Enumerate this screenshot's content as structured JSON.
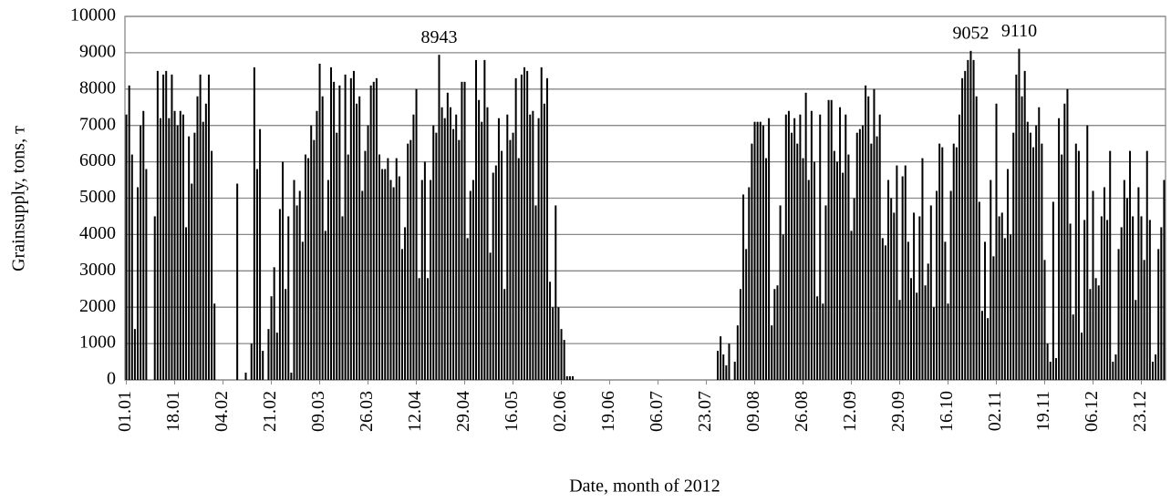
{
  "chart_data": {
    "type": "bar",
    "x_label": "Date, month of 2012",
    "y_label": "Grainsupply, tons, т",
    "color": "#000000",
    "grid": true,
    "ylim": [
      0,
      10000
    ],
    "yticks": [
      0,
      1000,
      2000,
      3000,
      4000,
      5000,
      6000,
      7000,
      8000,
      9000,
      10000
    ],
    "categories": [
      "01.01",
      null,
      null,
      null,
      null,
      null,
      null,
      null,
      null,
      null,
      null,
      null,
      null,
      null,
      null,
      null,
      null,
      "18.01",
      null,
      null,
      null,
      null,
      null,
      null,
      null,
      null,
      null,
      null,
      null,
      null,
      null,
      null,
      null,
      null,
      "04.02",
      null,
      null,
      null,
      null,
      null,
      null,
      null,
      null,
      null,
      null,
      null,
      null,
      null,
      null,
      null,
      null,
      "21.02",
      null,
      null,
      null,
      null,
      null,
      null,
      null,
      null,
      null,
      null,
      null,
      null,
      null,
      null,
      null,
      null,
      "09.03",
      null,
      null,
      null,
      null,
      null,
      null,
      null,
      null,
      null,
      null,
      null,
      null,
      null,
      null,
      null,
      null,
      "26.03",
      null,
      null,
      null,
      null,
      null,
      null,
      null,
      null,
      null,
      null,
      null,
      null,
      null,
      null,
      null,
      null,
      "12.04",
      null,
      null,
      null,
      null,
      null,
      null,
      null,
      null,
      null,
      null,
      null,
      null,
      null,
      null,
      null,
      null,
      "29.04",
      null,
      null,
      null,
      null,
      null,
      null,
      null,
      null,
      null,
      null,
      null,
      null,
      null,
      null,
      null,
      null,
      "16.05",
      null,
      null,
      null,
      null,
      null,
      null,
      null,
      null,
      null,
      null,
      null,
      null,
      null,
      null,
      null,
      null,
      "02.06",
      null,
      null,
      null,
      null,
      null,
      null,
      null,
      null,
      null,
      null,
      null,
      null,
      null,
      null,
      null,
      null,
      "19.06",
      null,
      null,
      null,
      null,
      null,
      null,
      null,
      null,
      null,
      null,
      null,
      null,
      null,
      null,
      null,
      null,
      "06.07",
      null,
      null,
      null,
      null,
      null,
      null,
      null,
      null,
      null,
      null,
      null,
      null,
      null,
      null,
      null,
      null,
      "23.07",
      null,
      null,
      null,
      null,
      null,
      null,
      null,
      null,
      null,
      null,
      null,
      null,
      null,
      null,
      null,
      null,
      "09.08",
      null,
      null,
      null,
      null,
      null,
      null,
      null,
      null,
      null,
      null,
      null,
      null,
      null,
      null,
      null,
      null,
      "26.08",
      null,
      null,
      null,
      null,
      null,
      null,
      null,
      null,
      null,
      null,
      null,
      null,
      null,
      null,
      null,
      null,
      "12.09",
      null,
      null,
      null,
      null,
      null,
      null,
      null,
      null,
      null,
      null,
      null,
      null,
      null,
      null,
      null,
      null,
      "29.09",
      null,
      null,
      null,
      null,
      null,
      null,
      null,
      null,
      null,
      null,
      null,
      null,
      null,
      null,
      null,
      null,
      "16.10",
      null,
      null,
      null,
      null,
      null,
      null,
      null,
      null,
      null,
      null,
      null,
      null,
      null,
      null,
      null,
      null,
      "02.11",
      null,
      null,
      null,
      null,
      null,
      null,
      null,
      null,
      null,
      null,
      null,
      null,
      null,
      null,
      null,
      null,
      "19.11",
      null,
      null,
      null,
      null,
      null,
      null,
      null,
      null,
      null,
      null,
      null,
      null,
      null,
      null,
      null,
      null,
      "06.12",
      null,
      null,
      null,
      null,
      null,
      null,
      null,
      null,
      null,
      null,
      null,
      null,
      null,
      null,
      null,
      null,
      "23.12",
      null,
      null,
      null,
      null,
      null,
      null,
      null,
      null
    ],
    "values": [
      7300,
      8100,
      6200,
      1400,
      5300,
      7000,
      7400,
      5800,
      0,
      0,
      4500,
      8500,
      7200,
      8400,
      8500,
      7200,
      8400,
      7400,
      7000,
      7400,
      7300,
      4200,
      6700,
      5400,
      6800,
      7800,
      8400,
      7100,
      7600,
      8400,
      6300,
      2100,
      0,
      0,
      0,
      0,
      0,
      0,
      0,
      5400,
      0,
      0,
      200,
      0,
      1000,
      8600,
      5800,
      6900,
      800,
      0,
      1400,
      2300,
      3100,
      1300,
      4700,
      6000,
      2500,
      4500,
      200,
      5500,
      4800,
      5200,
      3800,
      6200,
      6100,
      7000,
      6600,
      7400,
      8700,
      7800,
      4100,
      5500,
      8600,
      8200,
      6800,
      8100,
      4500,
      8400,
      6200,
      8300,
      8500,
      7600,
      7800,
      5200,
      6300,
      7000,
      8100,
      8200,
      8300,
      6200,
      5800,
      5800,
      6100,
      5500,
      5300,
      6100,
      5600,
      3600,
      4200,
      6500,
      6600,
      7300,
      8000,
      2800,
      5500,
      6000,
      2800,
      5500,
      7000,
      6800,
      8943,
      7500,
      7200,
      7900,
      7500,
      6900,
      7300,
      6600,
      8200,
      8200,
      3900,
      5200,
      5500,
      8800,
      7700,
      7100,
      8800,
      7500,
      3500,
      5700,
      5900,
      7200,
      6300,
      2500,
      7300,
      6600,
      6800,
      8300,
      6100,
      8400,
      8600,
      8500,
      7300,
      7400,
      4800,
      7200,
      8600,
      7600,
      8300,
      2700,
      2000,
      4800,
      2000,
      1400,
      1100,
      100,
      100,
      100,
      0,
      0,
      0,
      0,
      0,
      0,
      0,
      0,
      0,
      0,
      0,
      0,
      0,
      0,
      0,
      0,
      0,
      0,
      0,
      0,
      0,
      0,
      0,
      0,
      0,
      0,
      0,
      0,
      0,
      0,
      0,
      0,
      0,
      0,
      0,
      0,
      0,
      0,
      0,
      0,
      0,
      0,
      0,
      0,
      0,
      0,
      0,
      0,
      0,
      0,
      800,
      1200,
      700,
      400,
      1000,
      0,
      500,
      1500,
      2500,
      5100,
      3600,
      5300,
      6500,
      7100,
      7100,
      7100,
      7000,
      6100,
      7200,
      1500,
      2500,
      2600,
      4800,
      4000,
      7300,
      7400,
      6800,
      7200,
      6500,
      7300,
      6100,
      7900,
      5500,
      7400,
      6000,
      2300,
      7300,
      2100,
      4800,
      7700,
      7700,
      6300,
      6000,
      7500,
      5700,
      7300,
      6200,
      4100,
      5000,
      6800,
      6900,
      7000,
      8100,
      7800,
      6500,
      8000,
      6700,
      7300,
      3900,
      3700,
      5500,
      5000,
      4600,
      5900,
      2200,
      5600,
      5900,
      3800,
      2800,
      4600,
      2400,
      4500,
      6100,
      2600,
      3200,
      4800,
      2000,
      5200,
      6500,
      6400,
      3800,
      2100,
      5200,
      6500,
      6400,
      7300,
      8300,
      8500,
      8800,
      9052,
      8800,
      7800,
      4900,
      1900,
      3800,
      1700,
      5500,
      3400,
      7600,
      4500,
      4600,
      3900,
      5800,
      4000,
      6800,
      8400,
      9110,
      7800,
      8500,
      7100,
      6800,
      6400,
      7000,
      7500,
      6500,
      3300,
      1000,
      500,
      4900,
      600,
      7200,
      6200,
      7600,
      8000,
      4300,
      1800,
      6500,
      6300,
      1300,
      4400,
      7000,
      2500,
      5200,
      2800,
      2600,
      4500,
      5300,
      4400,
      6300,
      500,
      700,
      3600,
      4200,
      5500,
      5000,
      6300,
      4500,
      2200,
      5300,
      4500,
      3300,
      6300,
      4400,
      500,
      700,
      3600,
      4200,
      5500
    ],
    "value_labels": [
      null,
      null,
      null,
      null,
      null,
      null,
      null,
      null,
      null,
      null,
      null,
      null,
      null,
      null,
      null,
      null,
      null,
      null,
      null,
      null,
      null,
      null,
      null,
      null,
      null,
      null,
      null,
      null,
      null,
      null,
      null,
      null,
      null,
      null,
      null,
      null,
      null,
      null,
      null,
      null,
      null,
      null,
      null,
      null,
      null,
      null,
      null,
      null,
      null,
      null,
      null,
      null,
      null,
      null,
      null,
      null,
      null,
      null,
      null,
      null,
      null,
      null,
      null,
      null,
      null,
      null,
      null,
      null,
      null,
      null,
      null,
      null,
      null,
      null,
      null,
      null,
      null,
      null,
      null,
      null,
      null,
      null,
      null,
      null,
      null,
      null,
      null,
      null,
      null,
      null,
      null,
      null,
      null,
      null,
      null,
      null,
      null,
      null,
      null,
      null,
      null,
      null,
      null,
      null,
      null,
      null,
      null,
      null,
      null,
      null,
      "8943",
      null,
      null,
      null,
      null,
      null,
      null,
      null,
      null,
      null,
      null,
      null,
      null,
      null,
      null,
      null,
      null,
      null,
      null,
      null,
      null,
      null,
      null,
      null,
      null,
      null,
      null,
      null,
      null,
      null,
      null,
      null,
      null,
      null,
      null,
      null,
      null,
      null,
      null,
      null,
      null,
      null,
      null,
      null,
      null,
      null,
      null,
      null,
      null,
      null,
      null,
      null,
      null,
      null,
      null,
      null,
      null,
      null,
      null,
      null,
      null,
      null,
      null,
      null,
      null,
      null,
      null,
      null,
      null,
      null,
      null,
      null,
      null,
      null,
      null,
      null,
      null,
      null,
      null,
      null,
      null,
      null,
      null,
      null,
      null,
      null,
      null,
      null,
      null,
      null,
      null,
      null,
      null,
      null,
      null,
      null,
      null,
      null,
      null,
      null,
      null,
      null,
      null,
      null,
      null,
      null,
      null,
      null,
      null,
      null,
      null,
      null,
      null,
      null,
      null,
      null,
      null,
      null,
      null,
      null,
      null,
      null,
      null,
      null,
      null,
      null,
      null,
      null,
      null,
      null,
      null,
      null,
      null,
      null,
      null,
      null,
      null,
      null,
      null,
      null,
      null,
      null,
      null,
      null,
      null,
      null,
      null,
      null,
      null,
      null,
      null,
      null,
      null,
      null,
      null,
      null,
      null,
      null,
      null,
      null,
      null,
      null,
      null,
      null,
      null,
      null,
      null,
      null,
      null,
      null,
      null,
      null,
      null,
      null,
      null,
      null,
      null,
      null,
      null,
      null,
      null,
      null,
      null,
      null,
      null,
      null,
      null,
      "9052",
      null,
      null,
      null,
      null,
      null,
      null,
      null,
      null,
      null,
      null,
      null,
      null,
      null,
      null,
      null,
      null,
      "9110",
      null,
      null,
      null,
      null,
      null,
      null,
      null,
      null,
      null,
      null,
      null,
      null,
      null,
      null,
      null,
      null,
      null,
      null,
      null,
      null,
      null,
      null,
      null,
      null,
      null,
      null,
      null,
      null,
      null,
      null,
      null,
      null,
      null,
      null,
      null,
      null,
      null,
      null,
      null,
      null,
      null,
      null,
      null,
      null,
      null,
      null,
      null,
      null,
      null,
      null,
      null
    ]
  }
}
